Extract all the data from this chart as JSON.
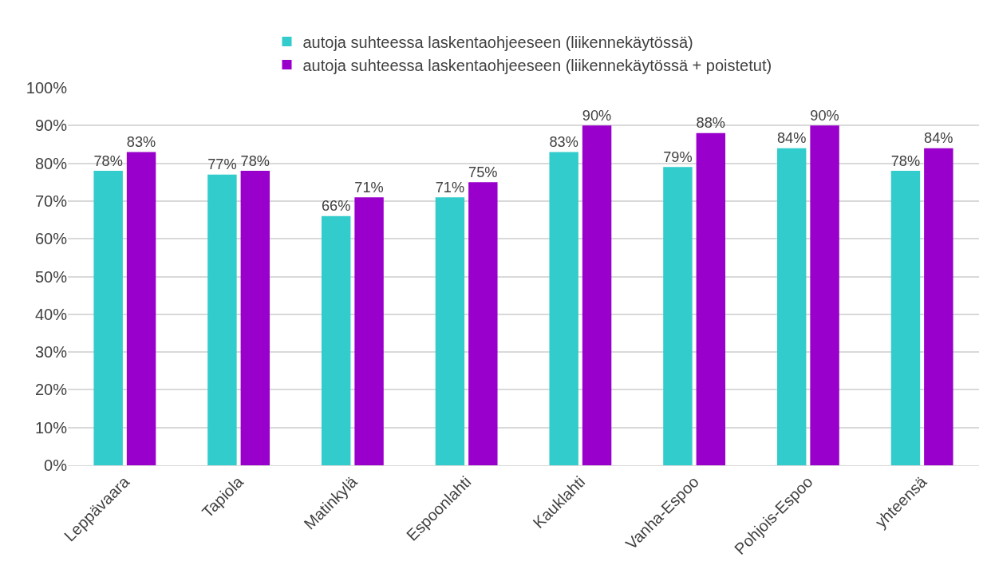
{
  "chart_data": {
    "type": "bar",
    "categories": [
      "Leppävaara",
      "Tapiola",
      "Matinkylä",
      "Espoonlahti",
      "Kauklahti",
      "Vanha-Espoo",
      "Pohjois-Espoo",
      "yhteensä"
    ],
    "series": [
      {
        "name": "autoja suhteessa laskentaohjeeseen (liikennekäytössä)",
        "color": "#33cccc",
        "values": [
          78,
          77,
          66,
          71,
          83,
          79,
          84,
          78
        ],
        "value_labels": [
          "78%",
          "77%",
          "66%",
          "71%",
          "83%",
          "79%",
          "84%",
          "78%"
        ]
      },
      {
        "name": "autoja suhteessa laskentaohjeeseen (liikennekäytössä + poistetut)",
        "color": "#9900cc",
        "values": [
          83,
          78,
          71,
          75,
          90,
          88,
          90,
          84
        ],
        "value_labels": [
          "83%",
          "78%",
          "71%",
          "75%",
          "90%",
          "88%",
          "90%",
          "84%"
        ]
      }
    ],
    "ylim": [
      0,
      100
    ],
    "yticks": [
      {
        "value": 0,
        "label": "0%"
      },
      {
        "value": 10,
        "label": "10%"
      },
      {
        "value": 20,
        "label": "20%"
      },
      {
        "value": 30,
        "label": "30%"
      },
      {
        "value": 40,
        "label": "40%"
      },
      {
        "value": 50,
        "label": "50%"
      },
      {
        "value": 60,
        "label": "60%"
      },
      {
        "value": 70,
        "label": "70%"
      },
      {
        "value": 80,
        "label": "80%"
      },
      {
        "value": 90,
        "label": "90%"
      },
      {
        "value": 100,
        "label": "100%"
      }
    ],
    "grid": "y",
    "legend": "top"
  }
}
